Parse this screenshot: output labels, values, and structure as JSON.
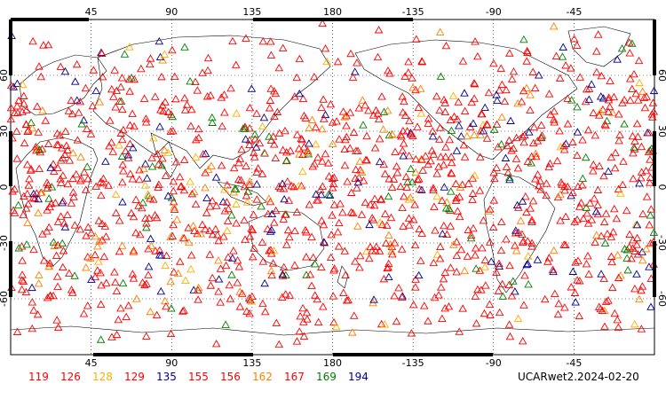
{
  "map": {
    "top_lon_ticks": [
      "45",
      "90",
      "135",
      "180",
      "-135",
      "-90",
      "-45"
    ],
    "bottom_lon_ticks": [
      "45",
      "90",
      "135",
      "180",
      "-135",
      "-90",
      "-45"
    ],
    "left_lat_ticks": [
      "60",
      "30",
      "0",
      "-30",
      "-60"
    ],
    "right_lat_ticks": [
      "60",
      "30",
      "0",
      "-30",
      "-60"
    ],
    "lon_range": [
      0,
      360
    ],
    "lat_range": [
      -90,
      90
    ],
    "grid": "dotted",
    "marker": "triangle-outline"
  },
  "legend": [
    {
      "label": "119",
      "color": "#ff0000"
    },
    {
      "label": "126",
      "color": "#ff0000"
    },
    {
      "label": "128",
      "color": "#ffb000"
    },
    {
      "label": "129",
      "color": "#ff0000"
    },
    {
      "label": "135",
      "color": "#000090"
    },
    {
      "label": "155",
      "color": "#ff0000"
    },
    {
      "label": "156",
      "color": "#ff0000"
    },
    {
      "label": "162",
      "color": "#ff8000"
    },
    {
      "label": "167",
      "color": "#ff0000"
    },
    {
      "label": "169",
      "color": "#008000"
    },
    {
      "label": "194",
      "color": "#000090"
    }
  ],
  "caption": "UCARwet2.2024-02-20"
}
